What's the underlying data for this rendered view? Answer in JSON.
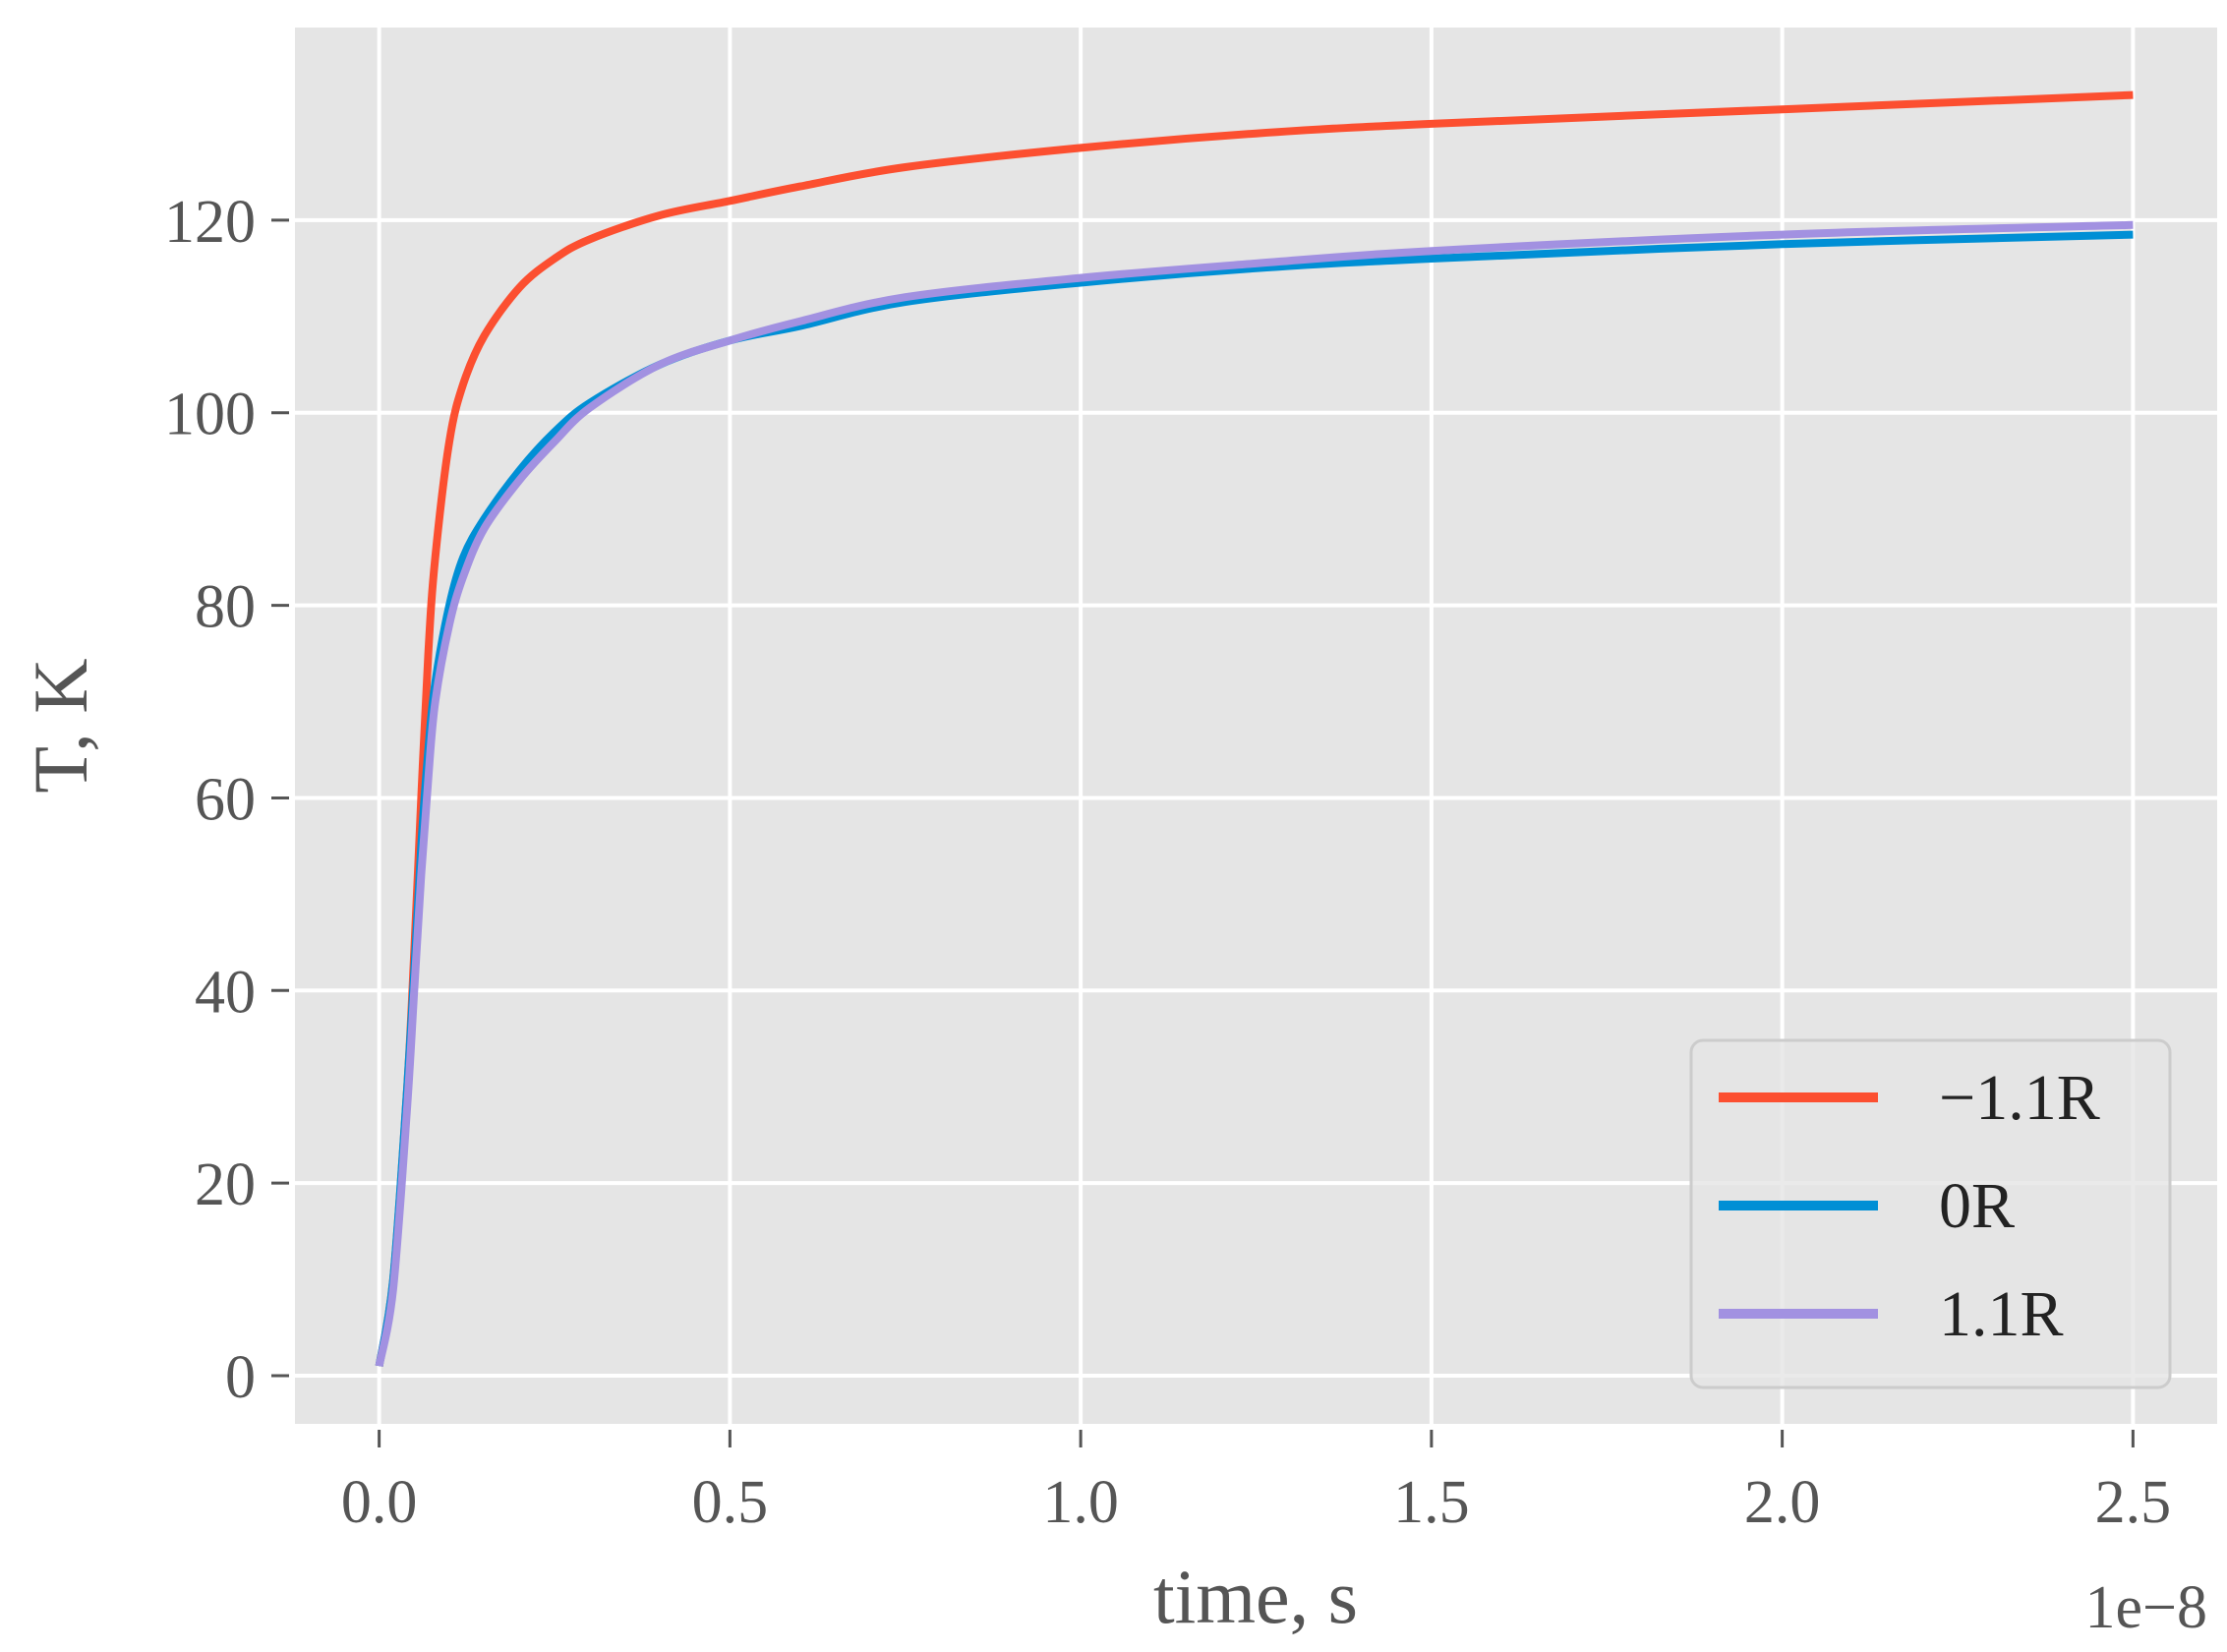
{
  "chart_data": {
    "type": "line",
    "xlabel": "time, s",
    "ylabel": "T, K",
    "x_offset_label": "1e−8",
    "xlim": [
      -0.12,
      2.62
    ],
    "ylim": [
      -5,
      140
    ],
    "xticks": [
      0.0,
      0.5,
      1.0,
      1.5,
      2.0,
      2.5
    ],
    "xtick_labels": [
      "0.0",
      "0.5",
      "1.0",
      "1.5",
      "2.0",
      "2.5"
    ],
    "yticks": [
      0,
      20,
      40,
      60,
      80,
      100,
      120
    ],
    "ytick_labels": [
      "0",
      "20",
      "40",
      "60",
      "80",
      "100",
      "120"
    ],
    "grid": true,
    "background": "#e5e5e5",
    "legend_position": "lower-right",
    "series": [
      {
        "name": "−1.1R",
        "color": "#fc4f30",
        "x": [
          0.0,
          0.02,
          0.04,
          0.05,
          0.06,
          0.07,
          0.08,
          0.1,
          0.12,
          0.15,
          0.2,
          0.25,
          0.3,
          0.4,
          0.5,
          0.6,
          0.75,
          1.0,
          1.25,
          1.5,
          2.0,
          2.5
        ],
        "y": [
          1,
          10,
          30,
          44,
          60,
          75,
          85,
          97,
          103,
          108,
          113,
          116,
          118,
          120.5,
          122,
          123.5,
          125.5,
          127.5,
          129,
          130,
          131.5,
          133
        ]
      },
      {
        "name": "0R",
        "color": "#008fd5",
        "x": [
          0.0,
          0.02,
          0.04,
          0.05,
          0.06,
          0.07,
          0.08,
          0.1,
          0.12,
          0.15,
          0.2,
          0.25,
          0.3,
          0.4,
          0.5,
          0.6,
          0.75,
          1.0,
          1.25,
          1.5,
          2.0,
          2.5
        ],
        "y": [
          1,
          10,
          30,
          42,
          55,
          65,
          72,
          80,
          85,
          89,
          94,
          98,
          101,
          105,
          107.5,
          109,
          111.5,
          113.5,
          115,
          116,
          117.5,
          118.5
        ]
      },
      {
        "name": "1.1R",
        "color": "#a291e1",
        "x": [
          0.0,
          0.02,
          0.04,
          0.05,
          0.06,
          0.07,
          0.08,
          0.1,
          0.12,
          0.15,
          0.2,
          0.25,
          0.3,
          0.4,
          0.5,
          0.6,
          0.75,
          1.0,
          1.25,
          1.5,
          2.0,
          2.5
        ],
        "y": [
          1,
          9,
          28,
          40,
          52,
          62,
          70,
          78,
          83,
          88,
          93,
          97,
          100.5,
          105,
          107.5,
          109.5,
          112,
          114,
          115.5,
          116.8,
          118.5,
          119.5
        ]
      }
    ]
  }
}
